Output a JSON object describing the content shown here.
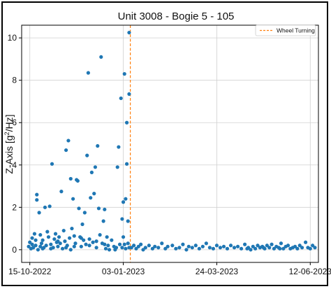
{
  "chart_data": {
    "type": "scatter",
    "title": "Unit 3008 - Bogie 5 - 105",
    "ylabel": {
      "prefix": "Z-Axis [g",
      "sup": "2",
      "suffix": "/Hz]"
    },
    "xlabel": "",
    "x_ticks": [
      "15-10-2022",
      "03-01-2023",
      "24-03-2023",
      "12-06-2023"
    ],
    "x_tick_dates": [
      "2022-10-15",
      "2023-01-03",
      "2023-03-24",
      "2023-06-12"
    ],
    "xlim": [
      "2022-10-08",
      "2023-06-19"
    ],
    "y_ticks": [
      0,
      2,
      4,
      6,
      8,
      10
    ],
    "ylim": [
      -0.6,
      10.6
    ],
    "grid": true,
    "legend_position": "top-right",
    "colors": {
      "points": "#1f77b4",
      "vline": "#ff7f0e",
      "grid": "#d0d0d0"
    },
    "vline": {
      "date": "2023-01-09",
      "label": "Wheel Turning"
    },
    "series": [
      {
        "points": [
          [
            "2022-10-14",
            0.15
          ],
          [
            "2022-10-15",
            0.35
          ],
          [
            "2022-10-16",
            0.05
          ],
          [
            "2022-10-17",
            0.55
          ],
          [
            "2022-10-17",
            0.25
          ],
          [
            "2022-10-18",
            0.1
          ],
          [
            "2022-10-19",
            0.75
          ],
          [
            "2022-10-20",
            0.45
          ],
          [
            "2022-10-21",
            2.6
          ],
          [
            "2022-10-21",
            2.35
          ],
          [
            "2022-10-22",
            0.0
          ],
          [
            "2022-10-23",
            1.75
          ],
          [
            "2022-10-24",
            0.15
          ],
          [
            "2022-10-24",
            0.7
          ],
          [
            "2022-10-25",
            0.3
          ],
          [
            "2022-10-26",
            0.05
          ],
          [
            "2022-10-27",
            0.1
          ],
          [
            "2022-10-28",
            2.0
          ],
          [
            "2022-10-29",
            0.2
          ],
          [
            "2022-10-30",
            0.85
          ],
          [
            "2022-10-31",
            0.6
          ],
          [
            "2022-11-01",
            2.05
          ],
          [
            "2022-11-02",
            0.25
          ],
          [
            "2022-11-03",
            4.05
          ],
          [
            "2022-11-04",
            0.1
          ],
          [
            "2022-11-05",
            0.5
          ],
          [
            "2022-11-06",
            0.75
          ],
          [
            "2022-11-07",
            0.35
          ],
          [
            "2022-11-08",
            0.15
          ],
          [
            "2022-11-09",
            0.6
          ],
          [
            "2022-11-10",
            0.3
          ],
          [
            "2022-11-11",
            2.75
          ],
          [
            "2022-11-12",
            0.05
          ],
          [
            "2022-11-13",
            0.9
          ],
          [
            "2022-11-14",
            0.4
          ],
          [
            "2022-11-15",
            4.7
          ],
          [
            "2022-11-16",
            0.2
          ],
          [
            "2022-11-17",
            5.15
          ],
          [
            "2022-11-18",
            0.55
          ],
          [
            "2022-11-19",
            3.35
          ],
          [
            "2022-11-19",
            0.0
          ],
          [
            "2022-11-20",
            1.0
          ],
          [
            "2022-11-21",
            2.4
          ],
          [
            "2022-11-22",
            0.65
          ],
          [
            "2022-11-23",
            0.3
          ],
          [
            "2022-11-24",
            3.3
          ],
          [
            "2022-11-25",
            3.25
          ],
          [
            "2022-11-26",
            1.95
          ],
          [
            "2022-11-27",
            0.6
          ],
          [
            "2022-11-28",
            0.15
          ],
          [
            "2022-11-29",
            1.2
          ],
          [
            "2022-11-30",
            0.45
          ],
          [
            "2022-12-01",
            1.75
          ],
          [
            "2022-12-02",
            0.25
          ],
          [
            "2022-12-03",
            4.45
          ],
          [
            "2022-12-04",
            8.35
          ],
          [
            "2022-12-05",
            0.5
          ],
          [
            "2022-12-06",
            2.45
          ],
          [
            "2022-12-07",
            3.65
          ],
          [
            "2022-12-08",
            0.35
          ],
          [
            "2022-12-09",
            2.65
          ],
          [
            "2022-12-10",
            3.9
          ],
          [
            "2022-12-11",
            0.1
          ],
          [
            "2022-12-12",
            4.9
          ],
          [
            "2022-12-13",
            1.95
          ],
          [
            "2022-12-14",
            0.7
          ],
          [
            "2022-12-15",
            9.1
          ],
          [
            "2022-12-16",
            0.3
          ],
          [
            "2022-12-17",
            1.35
          ],
          [
            "2022-12-18",
            1.9
          ],
          [
            "2022-12-19",
            0.05
          ],
          [
            "2022-12-20",
            0.6
          ],
          [
            "2022-12-21",
            0.2
          ],
          [
            "2022-12-22",
            0.0
          ],
          [
            "2022-12-24",
            0.45
          ],
          [
            "2022-12-26",
            0.15
          ],
          [
            "2022-12-28",
            0.1
          ],
          [
            "2022-12-29",
            3.9
          ],
          [
            "2022-12-30",
            4.85
          ],
          [
            "2022-12-31",
            0.25
          ],
          [
            "2023-01-01",
            7.15
          ],
          [
            "2023-01-02",
            1.45
          ],
          [
            "2023-01-03",
            2.25
          ],
          [
            "2023-01-03",
            0.6
          ],
          [
            "2023-01-04",
            8.3
          ],
          [
            "2023-01-05",
            2.4
          ],
          [
            "2023-01-06",
            6.0
          ],
          [
            "2023-01-06",
            4.05
          ],
          [
            "2023-01-07",
            1.35
          ],
          [
            "2023-01-07",
            0.3
          ],
          [
            "2023-01-08",
            10.25
          ],
          [
            "2023-01-08",
            7.35
          ],
          [
            "2023-01-08",
            0.1
          ],
          [
            "2022-10-20",
            0.2
          ],
          [
            "2022-10-26",
            0.45
          ],
          [
            "2022-11-02",
            0.05
          ],
          [
            "2022-11-08",
            0.4
          ],
          [
            "2022-11-15",
            0.1
          ],
          [
            "2022-11-22",
            0.15
          ],
          [
            "2022-11-28",
            0.55
          ],
          [
            "2022-12-05",
            0.2
          ],
          [
            "2022-12-11",
            0.4
          ],
          [
            "2022-12-18",
            0.25
          ],
          [
            "2022-12-27",
            0.0
          ],
          [
            "2023-01-02",
            0.1
          ],
          [
            "2023-01-04",
            0.25
          ],
          [
            "2023-01-05",
            0.05
          ],
          [
            "2023-01-10",
            0.1
          ],
          [
            "2023-01-12",
            0.2
          ],
          [
            "2023-01-14",
            0.05
          ],
          [
            "2023-01-16",
            0.15
          ],
          [
            "2023-01-18",
            0.25
          ],
          [
            "2023-01-20",
            0.0
          ],
          [
            "2023-01-22",
            0.1
          ],
          [
            "2023-01-25",
            0.2
          ],
          [
            "2023-01-28",
            0.05
          ],
          [
            "2023-01-30",
            0.15
          ],
          [
            "2023-02-02",
            0.1
          ],
          [
            "2023-02-05",
            0.3
          ],
          [
            "2023-02-08",
            0.05
          ],
          [
            "2023-02-10",
            0.15
          ],
          [
            "2023-02-14",
            0.2
          ],
          [
            "2023-02-17",
            0.05
          ],
          [
            "2023-02-20",
            0.1
          ],
          [
            "2023-02-23",
            0.25
          ],
          [
            "2023-02-26",
            0.0
          ],
          [
            "2023-02-28",
            0.15
          ],
          [
            "2023-03-03",
            0.1
          ],
          [
            "2023-03-06",
            0.2
          ],
          [
            "2023-03-09",
            0.05
          ],
          [
            "2023-03-12",
            0.15
          ],
          [
            "2023-03-15",
            0.3
          ],
          [
            "2023-03-18",
            0.1
          ],
          [
            "2023-03-21",
            0.05
          ],
          [
            "2023-03-24",
            0.2
          ],
          [
            "2023-03-27",
            0.1
          ],
          [
            "2023-03-30",
            0.15
          ],
          [
            "2023-04-02",
            0.05
          ],
          [
            "2023-04-05",
            0.2
          ],
          [
            "2023-04-08",
            0.1
          ],
          [
            "2023-04-11",
            0.15
          ],
          [
            "2023-04-14",
            0.05
          ],
          [
            "2023-04-17",
            0.25
          ],
          [
            "2023-04-20",
            0.1
          ],
          [
            "2023-04-22",
            0.0
          ],
          [
            "2023-04-24",
            0.15
          ],
          [
            "2023-04-26",
            0.05
          ],
          [
            "2023-04-28",
            0.2
          ],
          [
            "2023-04-30",
            0.1
          ],
          [
            "2023-05-02",
            0.15
          ],
          [
            "2023-05-04",
            0.05
          ],
          [
            "2023-05-06",
            0.2
          ],
          [
            "2023-05-08",
            0.1
          ],
          [
            "2023-05-10",
            0.25
          ],
          [
            "2023-05-12",
            0.05
          ],
          [
            "2023-05-14",
            0.15
          ],
          [
            "2023-05-16",
            0.1
          ],
          [
            "2023-05-18",
            0.3
          ],
          [
            "2023-05-20",
            0.05
          ],
          [
            "2023-05-22",
            0.15
          ],
          [
            "2023-05-24",
            0.2
          ],
          [
            "2023-05-26",
            0.05
          ],
          [
            "2023-05-28",
            0.1
          ],
          [
            "2023-05-30",
            0.15
          ],
          [
            "2023-06-01",
            0.05
          ],
          [
            "2023-06-03",
            0.2
          ],
          [
            "2023-06-05",
            0.1
          ],
          [
            "2023-06-08",
            0.35
          ],
          [
            "2023-06-10",
            0.1
          ],
          [
            "2023-06-12",
            0.05
          ],
          [
            "2023-06-14",
            0.2
          ],
          [
            "2023-06-16",
            0.1
          ],
          [
            "2023-04-19",
            0.05
          ],
          [
            "2023-05-03",
            0.1
          ],
          [
            "2023-05-17",
            0.05
          ]
        ]
      }
    ]
  }
}
